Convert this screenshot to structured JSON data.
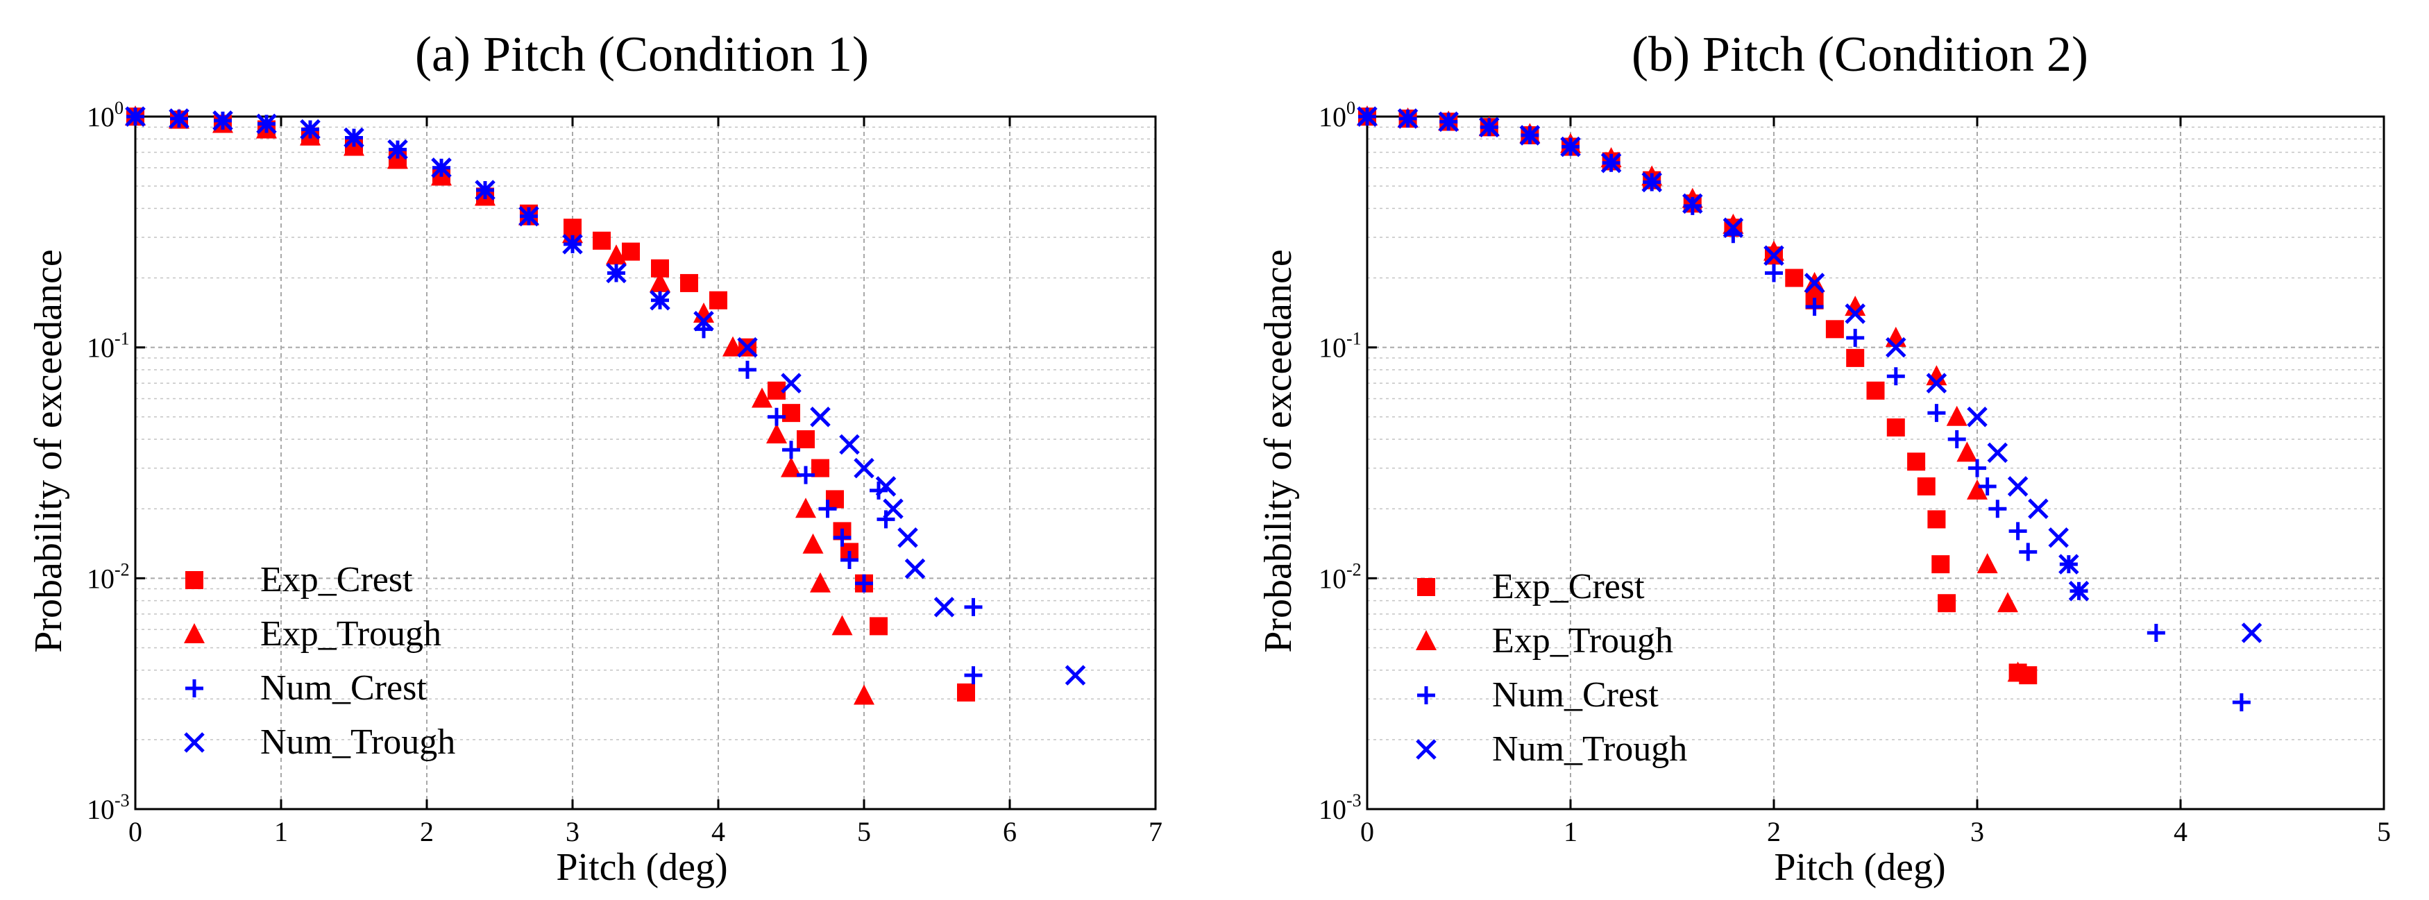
{
  "colors": {
    "exp": "#ff0000",
    "num": "#0000ff"
  },
  "chart_data": [
    {
      "type": "scatter",
      "title": "(a) Pitch (Condition 1)",
      "xlabel": "Pitch (deg)",
      "ylabel": "Probability of exceedance",
      "xlim": [
        0,
        7
      ],
      "xticks": [
        "0",
        "1",
        "2",
        "3",
        "4",
        "5",
        "6",
        "7"
      ],
      "ylim_log10": [
        -3,
        0
      ],
      "yticks": [
        {
          "base": "10",
          "exp": "0"
        },
        {
          "base": "10",
          "exp": "-1"
        },
        {
          "base": "10",
          "exp": "-2"
        },
        {
          "base": "10",
          "exp": "-3"
        }
      ],
      "yscale": "log",
      "grid": true,
      "legend_position": "bottom-left",
      "series": [
        {
          "name": "Exp_Crest",
          "marker": "square",
          "color": "exp",
          "x": [
            0.0,
            0.3,
            0.6,
            0.9,
            1.2,
            1.5,
            1.8,
            2.1,
            2.4,
            2.7,
            3.0,
            3.2,
            3.4,
            3.6,
            3.8,
            4.0,
            4.2,
            4.4,
            4.5,
            4.6,
            4.7,
            4.8,
            4.85,
            4.9,
            5.0,
            5.1,
            5.7
          ],
          "y": [
            1.0,
            0.97,
            0.93,
            0.88,
            0.82,
            0.74,
            0.65,
            0.55,
            0.45,
            0.38,
            0.33,
            0.29,
            0.26,
            0.22,
            0.19,
            0.16,
            0.1,
            0.065,
            0.052,
            0.04,
            0.03,
            0.022,
            0.016,
            0.013,
            0.0095,
            0.0062,
            0.0032
          ]
        },
        {
          "name": "Exp_Trough",
          "marker": "triangle",
          "color": "exp",
          "x": [
            0.0,
            0.3,
            0.6,
            0.9,
            1.2,
            1.5,
            1.8,
            2.1,
            2.4,
            2.7,
            3.0,
            3.3,
            3.6,
            3.9,
            4.1,
            4.3,
            4.4,
            4.5,
            4.6,
            4.65,
            4.7,
            4.85,
            5.0
          ],
          "y": [
            1.0,
            0.97,
            0.93,
            0.88,
            0.82,
            0.74,
            0.65,
            0.55,
            0.45,
            0.37,
            0.31,
            0.25,
            0.19,
            0.14,
            0.1,
            0.06,
            0.042,
            0.03,
            0.02,
            0.014,
            0.0095,
            0.0062,
            0.0031
          ]
        },
        {
          "name": "Num_Crest",
          "marker": "plus",
          "color": "num",
          "x": [
            0.0,
            0.3,
            0.6,
            0.9,
            1.2,
            1.5,
            1.8,
            2.1,
            2.4,
            2.7,
            3.0,
            3.3,
            3.6,
            3.9,
            4.2,
            4.4,
            4.5,
            4.6,
            4.75,
            4.85,
            4.9,
            5.0,
            5.1,
            5.15,
            5.75,
            5.75
          ],
          "y": [
            1.0,
            0.98,
            0.96,
            0.93,
            0.88,
            0.81,
            0.72,
            0.6,
            0.48,
            0.37,
            0.28,
            0.21,
            0.16,
            0.12,
            0.08,
            0.05,
            0.036,
            0.028,
            0.02,
            0.015,
            0.012,
            0.0095,
            0.024,
            0.018,
            0.0075,
            0.0038
          ]
        },
        {
          "name": "Num_Trough",
          "marker": "x",
          "color": "num",
          "x": [
            0.0,
            0.3,
            0.6,
            0.9,
            1.2,
            1.5,
            1.8,
            2.1,
            2.4,
            2.7,
            3.0,
            3.3,
            3.6,
            3.9,
            4.2,
            4.5,
            4.7,
            4.9,
            5.0,
            5.15,
            5.2,
            5.3,
            5.35,
            5.55,
            6.45
          ],
          "y": [
            1.0,
            0.98,
            0.96,
            0.93,
            0.88,
            0.81,
            0.72,
            0.6,
            0.48,
            0.37,
            0.28,
            0.21,
            0.16,
            0.13,
            0.1,
            0.07,
            0.05,
            0.038,
            0.03,
            0.025,
            0.02,
            0.015,
            0.011,
            0.0075,
            0.0038
          ]
        }
      ],
      "legend": [
        "Exp_Crest",
        "Exp_Trough",
        "Num_Crest",
        "Num_Trough"
      ]
    },
    {
      "type": "scatter",
      "title": "(b) Pitch (Condition 2)",
      "xlabel": "Pitch (deg)",
      "ylabel": "Probability of exceedance",
      "xlim": [
        0,
        5
      ],
      "xticks": [
        "0",
        "1",
        "2",
        "3",
        "4",
        "5"
      ],
      "ylim_log10": [
        -3,
        0
      ],
      "yticks": [
        {
          "base": "10",
          "exp": "0"
        },
        {
          "base": "10",
          "exp": "-1"
        },
        {
          "base": "10",
          "exp": "-2"
        },
        {
          "base": "10",
          "exp": "-3"
        }
      ],
      "yscale": "log",
      "grid": true,
      "legend_position": "bottom-left",
      "series": [
        {
          "name": "Exp_Crest",
          "marker": "square",
          "color": "exp",
          "x": [
            0.0,
            0.2,
            0.4,
            0.6,
            0.8,
            1.0,
            1.2,
            1.4,
            1.6,
            1.8,
            2.0,
            2.1,
            2.2,
            2.3,
            2.4,
            2.5,
            2.6,
            2.7,
            2.75,
            2.8,
            2.82,
            2.85,
            3.2,
            3.25
          ],
          "y": [
            1.0,
            0.98,
            0.95,
            0.9,
            0.83,
            0.74,
            0.64,
            0.53,
            0.42,
            0.33,
            0.25,
            0.2,
            0.16,
            0.12,
            0.09,
            0.065,
            0.045,
            0.032,
            0.025,
            0.018,
            0.0115,
            0.0078,
            0.0039,
            0.0038
          ]
        },
        {
          "name": "Exp_Trough",
          "marker": "triangle",
          "color": "exp",
          "x": [
            0.0,
            0.2,
            0.4,
            0.6,
            0.8,
            1.0,
            1.2,
            1.4,
            1.6,
            1.8,
            2.0,
            2.2,
            2.4,
            2.6,
            2.8,
            2.9,
            2.95,
            3.0,
            3.05,
            3.15,
            3.2
          ],
          "y": [
            1.0,
            0.98,
            0.95,
            0.9,
            0.84,
            0.76,
            0.66,
            0.55,
            0.44,
            0.34,
            0.26,
            0.19,
            0.15,
            0.11,
            0.075,
            0.05,
            0.035,
            0.024,
            0.0115,
            0.0078,
            0.0039
          ]
        },
        {
          "name": "Num_Crest",
          "marker": "plus",
          "color": "num",
          "x": [
            0.0,
            0.2,
            0.4,
            0.6,
            0.8,
            1.0,
            1.2,
            1.4,
            1.6,
            1.8,
            2.0,
            2.2,
            2.4,
            2.6,
            2.8,
            2.9,
            3.0,
            3.05,
            3.1,
            3.2,
            3.25,
            3.45,
            3.5,
            3.88,
            4.3
          ],
          "y": [
            1.0,
            0.98,
            0.95,
            0.9,
            0.83,
            0.74,
            0.63,
            0.52,
            0.41,
            0.31,
            0.21,
            0.15,
            0.11,
            0.075,
            0.052,
            0.04,
            0.03,
            0.025,
            0.02,
            0.016,
            0.013,
            0.0115,
            0.0088,
            0.0058,
            0.0029
          ]
        },
        {
          "name": "Num_Trough",
          "marker": "x",
          "color": "num",
          "x": [
            0.0,
            0.2,
            0.4,
            0.6,
            0.8,
            1.0,
            1.2,
            1.4,
            1.6,
            1.8,
            2.0,
            2.2,
            2.4,
            2.6,
            2.8,
            3.0,
            3.1,
            3.2,
            3.3,
            3.4,
            3.45,
            3.5,
            4.35
          ],
          "y": [
            1.0,
            0.98,
            0.95,
            0.9,
            0.83,
            0.74,
            0.63,
            0.52,
            0.42,
            0.33,
            0.25,
            0.19,
            0.14,
            0.1,
            0.07,
            0.05,
            0.035,
            0.025,
            0.02,
            0.015,
            0.0115,
            0.0088,
            0.0058
          ]
        }
      ],
      "legend": [
        "Exp_Crest",
        "Exp_Trough",
        "Num_Crest",
        "Num_Trough"
      ]
    }
  ]
}
